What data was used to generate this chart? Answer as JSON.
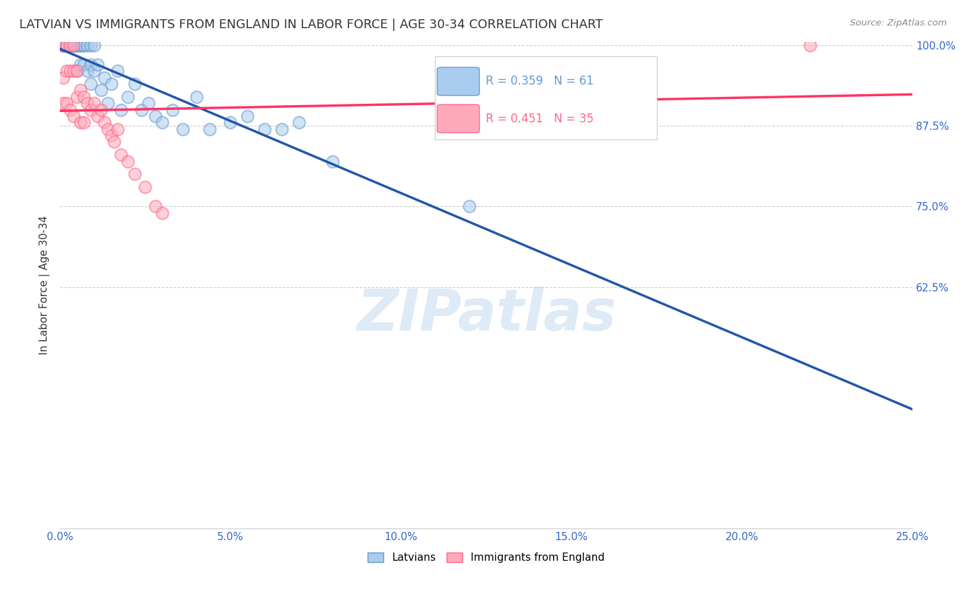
{
  "title": "LATVIAN VS IMMIGRANTS FROM ENGLAND IN LABOR FORCE | AGE 30-34 CORRELATION CHART",
  "source": "Source: ZipAtlas.com",
  "ylabel": "In Labor Force | Age 30-34",
  "xlim": [
    0.0,
    0.25
  ],
  "ylim": [
    0.25,
    1.005
  ],
  "xticks": [
    0.0,
    0.05,
    0.1,
    0.15,
    0.2,
    0.25
  ],
  "yticks": [
    0.625,
    0.75,
    0.875,
    1.0
  ],
  "xticklabels": [
    "0.0%",
    "5.0%",
    "10.0%",
    "15.0%",
    "20.0%",
    "25.0%"
  ],
  "yticklabels": [
    "62.5%",
    "75.0%",
    "87.5%",
    "100.0%"
  ],
  "blue_color": "#6699CC",
  "pink_color": "#FF6688",
  "blue_line_color": "#2255AA",
  "pink_line_color": "#FF3366",
  "blue_R": 0.359,
  "blue_N": 61,
  "pink_R": 0.451,
  "pink_N": 35,
  "blue_x": [
    0.001,
    0.001,
    0.001,
    0.001,
    0.001,
    0.002,
    0.002,
    0.002,
    0.002,
    0.002,
    0.003,
    0.003,
    0.003,
    0.003,
    0.003,
    0.004,
    0.004,
    0.004,
    0.004,
    0.004,
    0.005,
    0.005,
    0.005,
    0.005,
    0.006,
    0.006,
    0.006,
    0.007,
    0.007,
    0.007,
    0.008,
    0.008,
    0.009,
    0.009,
    0.009,
    0.01,
    0.01,
    0.011,
    0.012,
    0.013,
    0.014,
    0.015,
    0.017,
    0.018,
    0.02,
    0.022,
    0.024,
    0.026,
    0.028,
    0.03,
    0.033,
    0.036,
    0.04,
    0.044,
    0.05,
    0.055,
    0.06,
    0.065,
    0.07,
    0.08,
    0.12
  ],
  "blue_y": [
    1.0,
    1.0,
    1.0,
    1.0,
    1.0,
    1.0,
    1.0,
    1.0,
    1.0,
    1.0,
    1.0,
    1.0,
    1.0,
    1.0,
    1.0,
    1.0,
    1.0,
    1.0,
    1.0,
    1.0,
    1.0,
    1.0,
    1.0,
    0.96,
    1.0,
    1.0,
    0.97,
    1.0,
    1.0,
    0.97,
    1.0,
    0.96,
    1.0,
    0.97,
    0.94,
    1.0,
    0.96,
    0.97,
    0.93,
    0.95,
    0.91,
    0.94,
    0.96,
    0.9,
    0.92,
    0.94,
    0.9,
    0.91,
    0.89,
    0.88,
    0.9,
    0.87,
    0.92,
    0.87,
    0.88,
    0.89,
    0.87,
    0.87,
    0.88,
    0.82,
    0.75
  ],
  "pink_x": [
    0.001,
    0.001,
    0.001,
    0.002,
    0.002,
    0.002,
    0.003,
    0.003,
    0.003,
    0.004,
    0.004,
    0.004,
    0.005,
    0.005,
    0.006,
    0.006,
    0.007,
    0.007,
    0.008,
    0.009,
    0.01,
    0.011,
    0.012,
    0.013,
    0.014,
    0.015,
    0.016,
    0.017,
    0.018,
    0.02,
    0.022,
    0.025,
    0.028,
    0.03,
    0.22
  ],
  "pink_y": [
    1.0,
    0.95,
    0.91,
    1.0,
    0.96,
    0.91,
    1.0,
    0.96,
    0.9,
    1.0,
    0.96,
    0.89,
    0.96,
    0.92,
    0.93,
    0.88,
    0.92,
    0.88,
    0.91,
    0.9,
    0.91,
    0.89,
    0.9,
    0.88,
    0.87,
    0.86,
    0.85,
    0.87,
    0.83,
    0.82,
    0.8,
    0.78,
    0.75,
    0.74,
    1.0
  ],
  "watermark_text": "ZIPatlas",
  "watermark_color": "#C8DCF0"
}
